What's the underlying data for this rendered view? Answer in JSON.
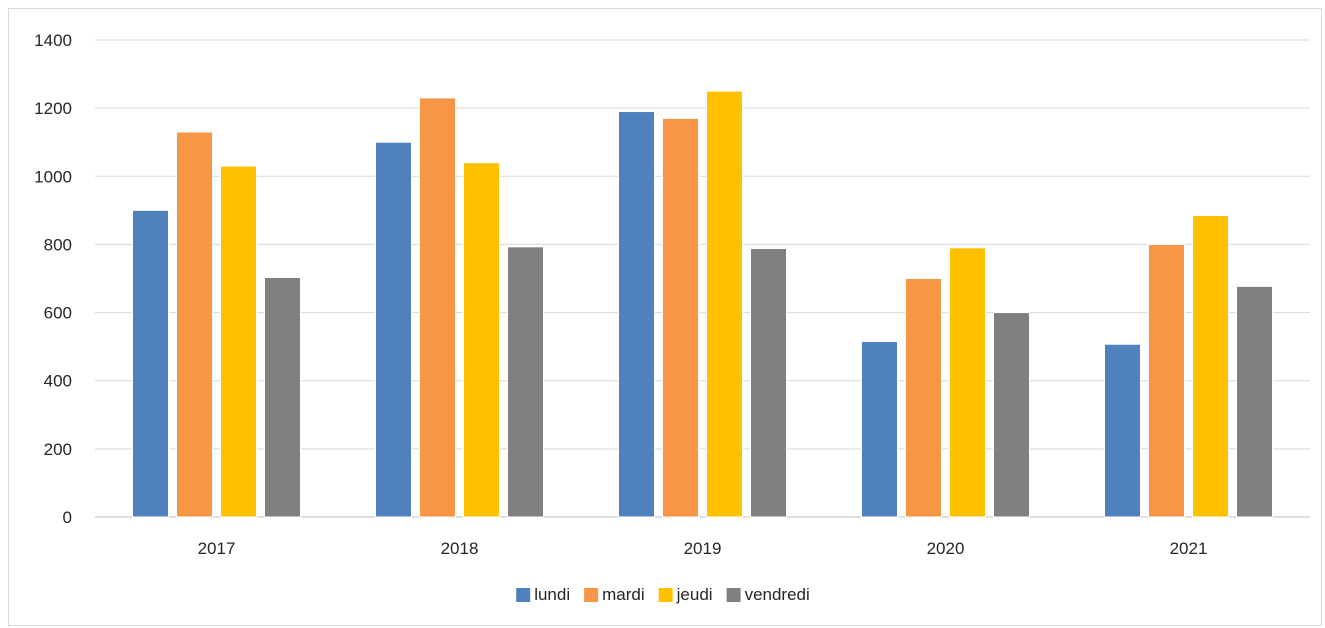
{
  "chart_data": {
    "type": "bar",
    "title": "",
    "xlabel": "",
    "ylabel": "",
    "categories": [
      "2017",
      "2018",
      "2019",
      "2020",
      "2021"
    ],
    "series": [
      {
        "name": "lundi",
        "color": "#4F81BD",
        "values": [
          900,
          1100,
          1190,
          515,
          507
        ]
      },
      {
        "name": "mardi",
        "color": "#F79646",
        "values": [
          1130,
          1230,
          1170,
          700,
          800
        ]
      },
      {
        "name": "jeudi",
        "color": "#FFC000",
        "values": [
          1030,
          1040,
          1250,
          790,
          885
        ]
      },
      {
        "name": "vendredi",
        "color": "#808080",
        "values": [
          703,
          793,
          788,
          600,
          677
        ]
      }
    ],
    "ylim": [
      0,
      1400
    ],
    "yticks": [
      "0",
      "200",
      "400",
      "600",
      "800",
      "1000",
      "1200",
      "1400"
    ],
    "grid": true,
    "legend": "bottom"
  }
}
